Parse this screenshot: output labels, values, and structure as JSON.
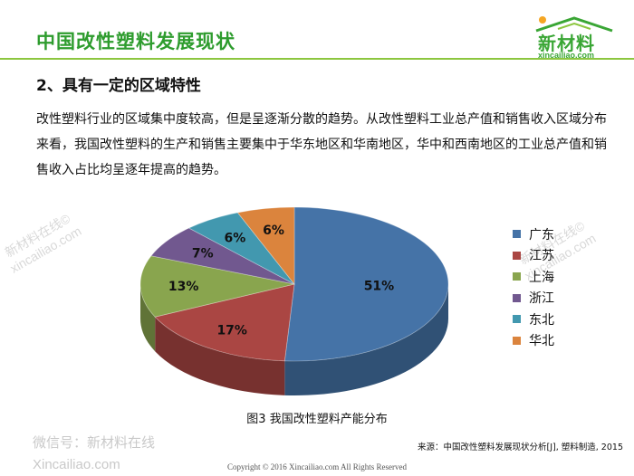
{
  "header": {
    "title": "中国改性塑料发展现状",
    "logo_text": "新材料",
    "logo_url": "xincailiao.com"
  },
  "section": {
    "heading": "2、具有一定的区域特性",
    "paragraph": "改性塑料行业的区域集中度较高，但是呈逐渐分散的趋势。从改性塑料工业总产值和销售收入区域分布来看，我国改性塑料的生产和销售主要集中于华东地区和华南地区，华中和西南地区的工业总产值和销售收入占比均呈逐年提高的趋势。"
  },
  "chart_data": {
    "type": "pie",
    "categories": [
      "广东",
      "江苏",
      "上海",
      "浙江",
      "东北",
      "华北"
    ],
    "values": [
      51,
      17,
      13,
      7,
      6,
      6
    ],
    "labels": [
      "51%",
      "17%",
      "13%",
      "7%",
      "6%",
      "6%"
    ],
    "colors": [
      "#4573a7",
      "#aa4643",
      "#89a54e",
      "#71588f",
      "#4298af",
      "#db843d"
    ],
    "style": "3d",
    "legend_position": "right",
    "caption": "图3 我国改性塑料产能分布"
  },
  "legend": {
    "items": [
      {
        "label": "广东",
        "color": "#4573a7"
      },
      {
        "label": "江苏",
        "color": "#aa4643"
      },
      {
        "label": "上海",
        "color": "#89a54e"
      },
      {
        "label": "浙江",
        "color": "#71588f"
      },
      {
        "label": "东北",
        "color": "#4298af"
      },
      {
        "label": "华北",
        "color": "#db843d"
      }
    ]
  },
  "footer": {
    "source": "来源：中国改性塑料发展现状分析[J], 塑料制造, 2015",
    "copyright": "Copyright © 2016   Xincailiao.com   All Rights Reserved",
    "wechat": "微信号：新材料在线",
    "site": "Xincailiao.com"
  },
  "watermark": {
    "line1": "新材料在线©",
    "line2": "xincailiao.com"
  }
}
